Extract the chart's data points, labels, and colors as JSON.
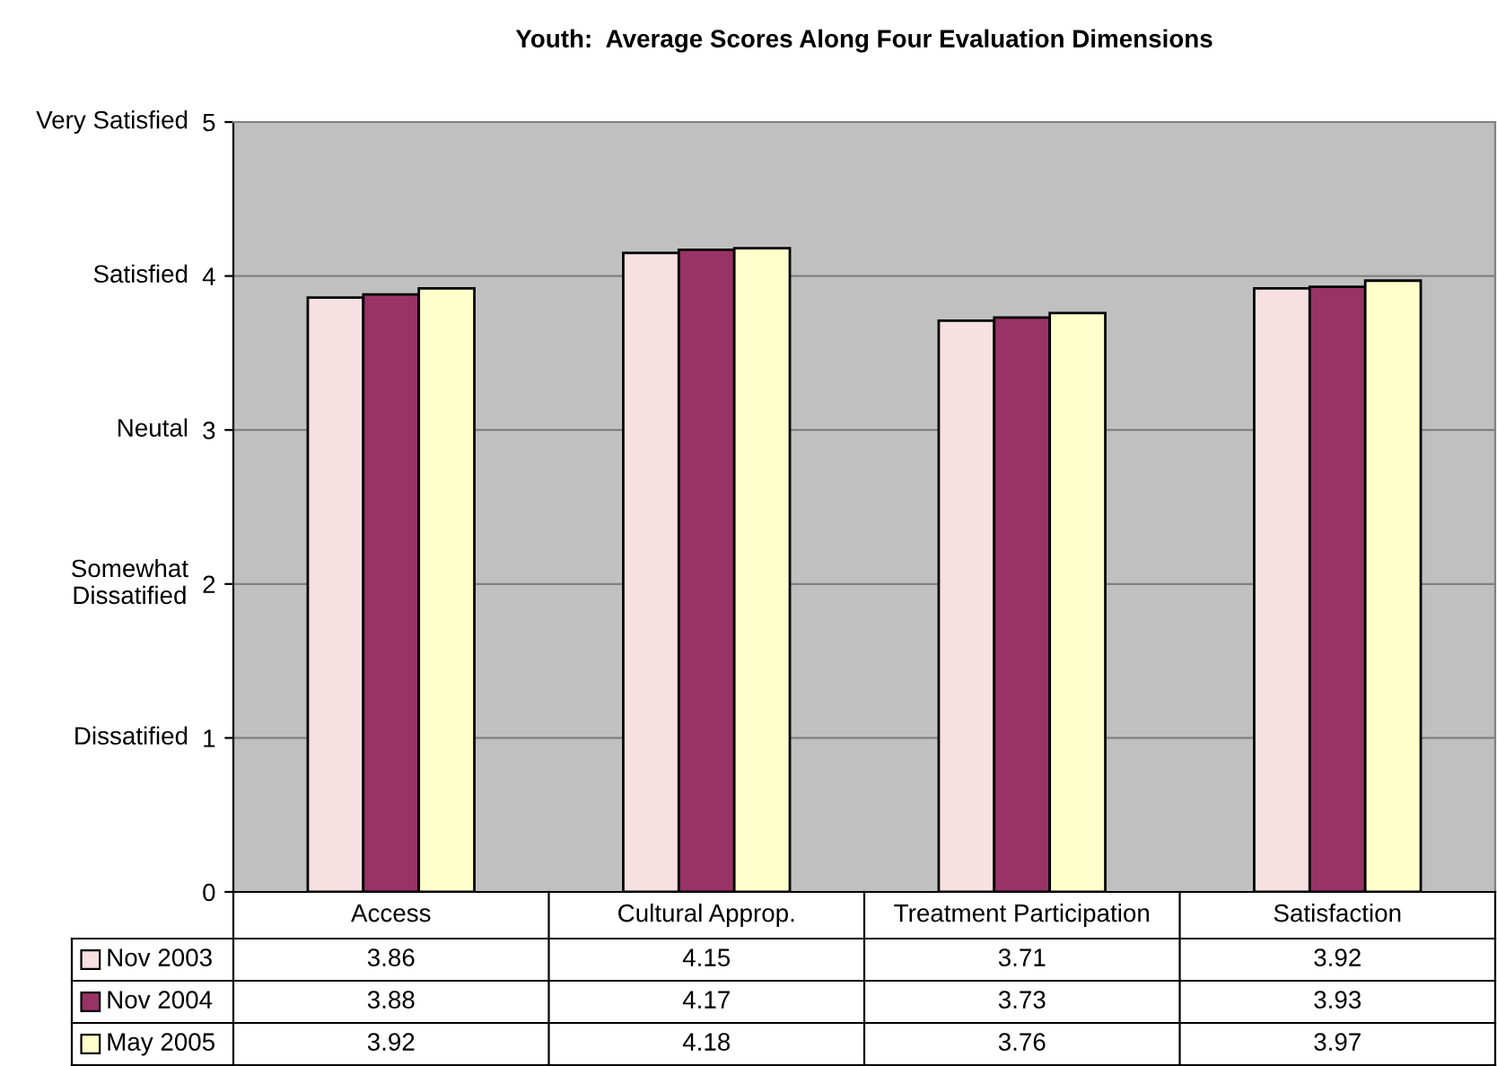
{
  "chart_data": {
    "type": "bar",
    "title": "Youth:  Average Scores Along Four Evaluation Dimensions",
    "categories": [
      "Access",
      "Cultural Approp.",
      "Treatment Participation",
      "Satisfaction"
    ],
    "series": [
      {
        "name": "Nov 2003",
        "color": "#f6e0e2",
        "values": [
          3.86,
          4.15,
          3.71,
          3.92
        ]
      },
      {
        "name": "Nov 2004",
        "color": "#993366",
        "values": [
          3.88,
          4.17,
          3.73,
          3.93
        ]
      },
      {
        "name": "May 2005",
        "color": "#ffffcc",
        "values": [
          3.92,
          4.18,
          3.76,
          3.97
        ]
      }
    ],
    "ylim": [
      0,
      5
    ],
    "yticks": [
      0,
      1,
      2,
      3,
      4,
      5
    ],
    "annotations": [
      "Very Satisfied",
      "Satisfied",
      "Neutal",
      "Somewhat\nDissatified",
      "Dissatified"
    ],
    "grid": "y",
    "data_labels": true,
    "legend": "bottom"
  }
}
